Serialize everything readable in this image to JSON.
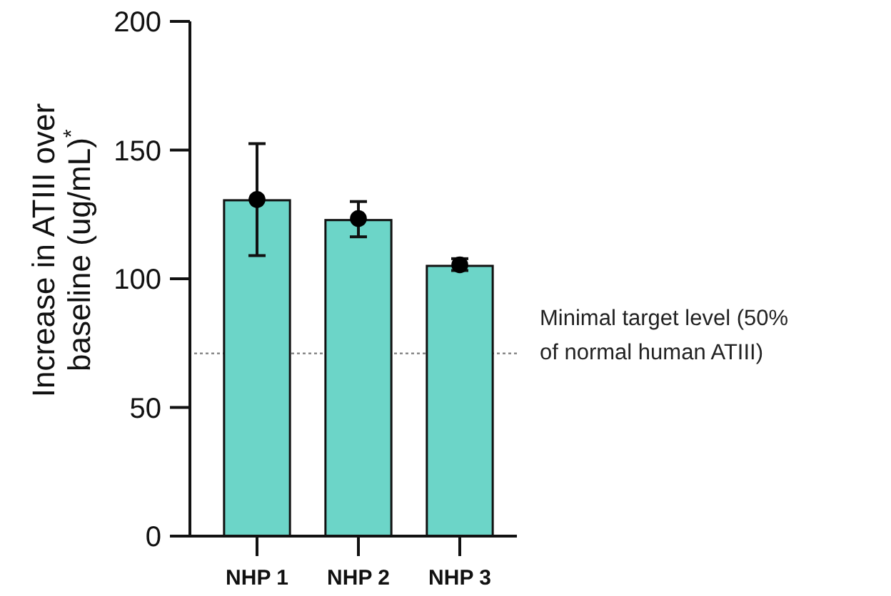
{
  "chart_data": {
    "type": "bar",
    "ylabel": "Increase in ATIII over\nbaseline  (ug/mL)$^{*}$",
    "categories": [
      "NHP 1",
      "NHP 2",
      "NHP 3"
    ],
    "series": [
      {
        "color": "#6cd5c8",
        "values": [
          130.5,
          122.8,
          105
        ]
      },
      {
        "type": "scatter",
        "color": "#000000",
        "values": [
          130.8,
          123.4,
          105.4
        ],
        "errors": [
          [
            109,
            152.5
          ],
          [
            116.3,
            130
          ],
          [
            103.2,
            107.8
          ]
        ]
      }
    ],
    "ylim": [
      0,
      200
    ],
    "yticks": [
      0,
      50,
      100,
      150,
      200
    ],
    "grid": false,
    "marker": "circle",
    "ref_lines": [
      {
        "axis": "y",
        "value": 71,
        "label": "Minimal target level (50% of normal human ATIII)",
        "color": "#888888",
        "line_style": "dotted"
      }
    ]
  }
}
